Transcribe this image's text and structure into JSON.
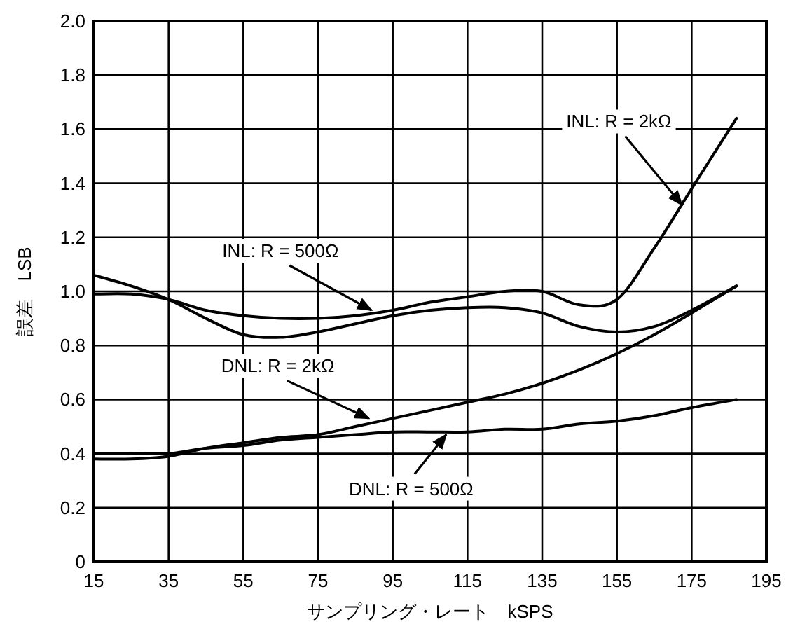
{
  "chart_data": {
    "type": "line",
    "xlabel": "サンプリング・レート　kSPS",
    "ylabel": "誤差　LSB",
    "x": [
      15,
      25,
      35,
      45,
      55,
      65,
      75,
      85,
      95,
      105,
      115,
      125,
      135,
      145,
      155,
      165,
      175,
      187
    ],
    "series": [
      {
        "color": "#000000",
        "values": [
          0.99,
          0.99,
          0.97,
          0.93,
          0.91,
          0.9,
          0.9,
          0.91,
          0.93,
          0.96,
          0.98,
          1.0,
          1.0,
          0.95,
          0.97,
          1.16,
          1.38,
          1.64
        ]
      },
      {
        "color": "#000000",
        "values": [
          1.06,
          1.02,
          0.97,
          0.9,
          0.84,
          0.83,
          0.85,
          0.88,
          0.91,
          0.93,
          0.94,
          0.94,
          0.92,
          0.87,
          0.85,
          0.87,
          0.93,
          1.02
        ]
      },
      {
        "color": "#000000",
        "values": [
          0.38,
          0.38,
          0.39,
          0.42,
          0.44,
          0.46,
          0.47,
          0.5,
          0.53,
          0.56,
          0.59,
          0.62,
          0.66,
          0.71,
          0.77,
          0.84,
          0.92,
          1.02
        ]
      },
      {
        "color": "#000000",
        "values": [
          0.4,
          0.4,
          0.4,
          0.42,
          0.43,
          0.45,
          0.46,
          0.47,
          0.48,
          0.48,
          0.48,
          0.49,
          0.49,
          0.51,
          0.52,
          0.54,
          0.57,
          0.6
        ]
      }
    ],
    "annotations": [
      {
        "text": "INL: R = 2kΩ",
        "x": 172.4,
        "y": 1.32
      },
      {
        "text": "INL: R = 500Ω",
        "x": 89.3,
        "y": 0.93
      },
      {
        "text": "DNL: R = 2kΩ",
        "x": 88.6,
        "y": 0.53
      },
      {
        "text": "DNL: R = 500Ω",
        "x": 109.3,
        "y": 0.47
      }
    ],
    "xlim": [
      15,
      195
    ],
    "ylim": [
      0,
      2.0
    ],
    "xticks": [
      15,
      35,
      55,
      75,
      95,
      115,
      135,
      155,
      175,
      195
    ],
    "yticks": [
      {
        "value": 0,
        "label": "0"
      },
      {
        "value": 0.2,
        "label": "0.2"
      },
      {
        "value": 0.4,
        "label": "0.4"
      },
      {
        "value": 0.6,
        "label": "0.6"
      },
      {
        "value": 0.8,
        "label": "0.8"
      },
      {
        "value": 1.0,
        "label": "1.0"
      },
      {
        "value": 1.2,
        "label": "1.2"
      },
      {
        "value": 1.4,
        "label": "1.4"
      },
      {
        "value": 1.6,
        "label": "1.6"
      },
      {
        "value": 1.8,
        "label": "1.8"
      },
      {
        "value": 2.0,
        "label": "2.0"
      }
    ],
    "grid": true,
    "marker": "none",
    "line_style": "solid"
  }
}
